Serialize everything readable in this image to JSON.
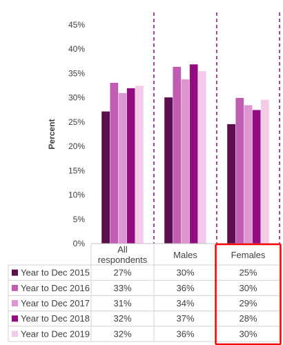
{
  "chart_data": {
    "type": "bar",
    "title": "",
    "xlabel": "",
    "ylabel": "Percent",
    "ylim": [
      0,
      45
    ],
    "yticks": [
      "0%",
      "5%",
      "10%",
      "15%",
      "20%",
      "25%",
      "30%",
      "35%",
      "40%",
      "45%"
    ],
    "categories": [
      "All respondents",
      "Males",
      "Females"
    ],
    "series": [
      {
        "name": "Year to Dec 2015",
        "color": "#5c0f4f",
        "values": [
          27.2,
          30.1,
          24.6
        ],
        "labels": [
          "27%",
          "30%",
          "25%"
        ]
      },
      {
        "name": "Year to Dec 2016",
        "color": "#c25bb2",
        "values": [
          33.1,
          36.4,
          30.0
        ],
        "labels": [
          "33%",
          "36%",
          "30%"
        ]
      },
      {
        "name": "Year to Dec 2017",
        "color": "#de96d1",
        "values": [
          31.0,
          33.8,
          28.5
        ],
        "labels": [
          "31%",
          "34%",
          "29%"
        ]
      },
      {
        "name": "Year to Dec 2018",
        "color": "#930b80",
        "values": [
          32.0,
          36.9,
          27.5
        ],
        "labels": [
          "32%",
          "37%",
          "28%"
        ]
      },
      {
        "name": "Year to Dec 2019",
        "color": "#f2cbeb",
        "values": [
          32.5,
          35.5,
          29.6
        ],
        "labels": [
          "32%",
          "36%",
          "30%"
        ]
      }
    ],
    "grid": false,
    "legend": "data table below chart",
    "highlight_category": "Females",
    "highlight_color": "#ff0000",
    "separator_color": "#8b1d7e"
  }
}
